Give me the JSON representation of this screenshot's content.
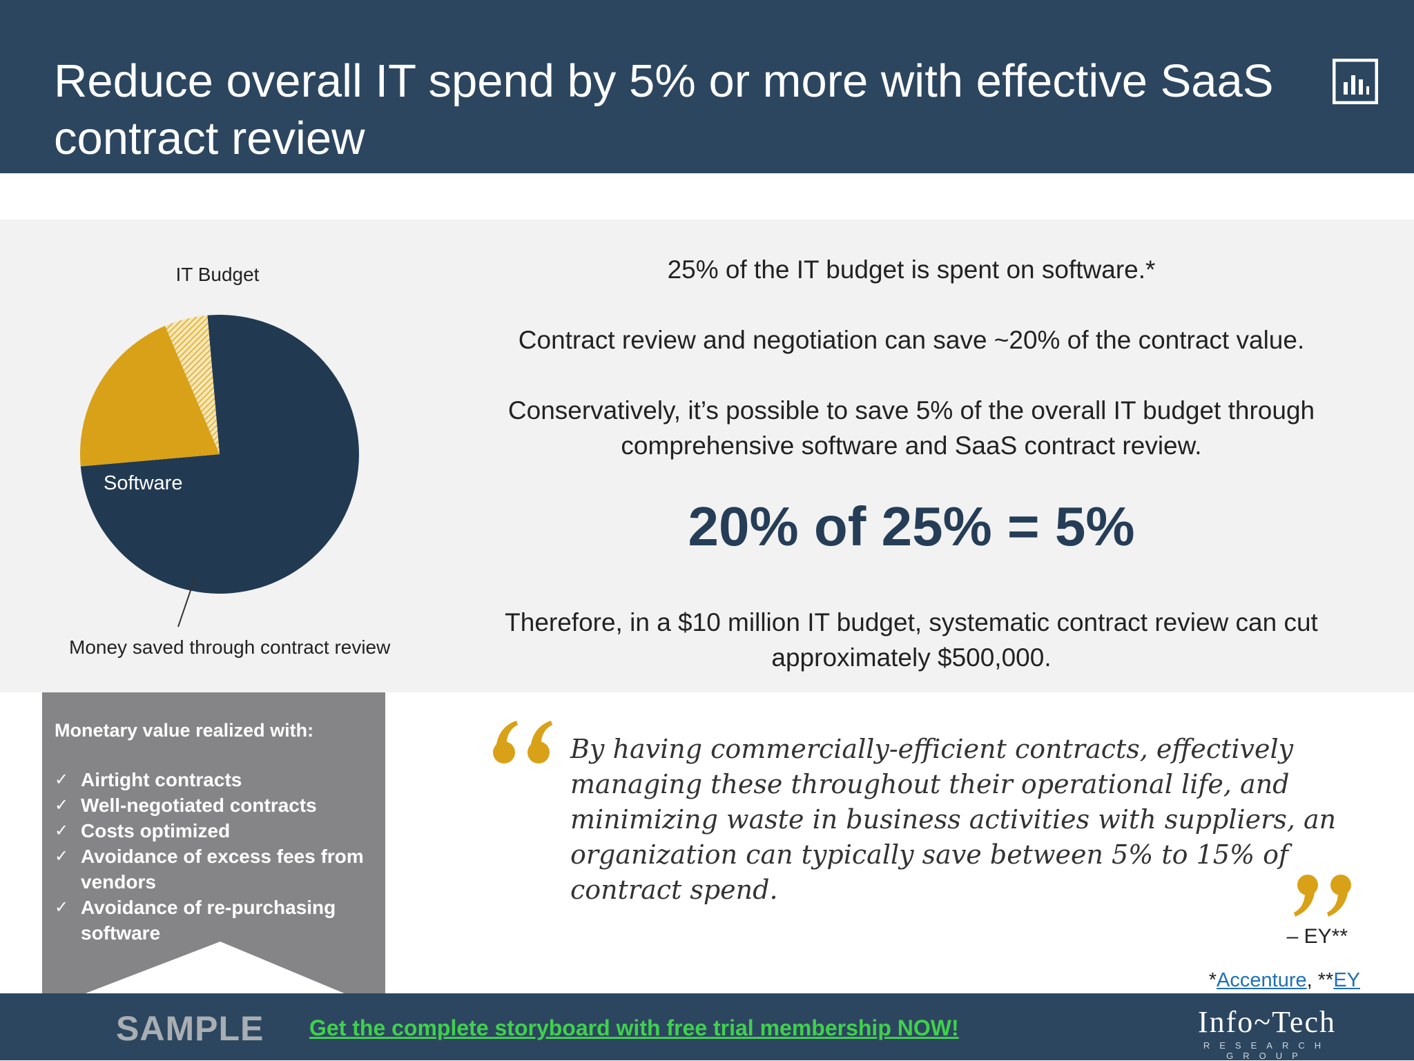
{
  "header": {
    "title": "Reduce overall IT spend by 5% or more with effective SaaS contract review",
    "icon": "bar-chart-icon"
  },
  "chart_data": {
    "type": "pie",
    "title": "IT Budget",
    "slices": [
      {
        "label": "",
        "value": 75,
        "color": "#213a52"
      },
      {
        "label": "Software",
        "value": 20,
        "color": "#d9a117"
      },
      {
        "label": "Money saved through contract review",
        "value": 5,
        "color": "#e8c860",
        "pattern": "hatched"
      }
    ]
  },
  "stats": {
    "line1": "25% of the IT budget is spent on software.*",
    "line2": "Contract review and negotiation can save ~20% of the contract value.",
    "line3": "Conservatively, it’s possible to save 5% of the overall IT budget through comprehensive software and SaaS contract review.",
    "equation": "20% of 25% = 5%",
    "line4": "Therefore, in a $10 million IT budget, systematic contract review can cut approximately $500,000."
  },
  "value_box": {
    "heading": "Monetary value realized with:",
    "items": [
      "Airtight contracts",
      "Well-negotiated contracts",
      "Costs optimized",
      "Avoidance of excess fees from vendors",
      "Avoidance of re-purchasing software"
    ],
    "check": "✓"
  },
  "quote": {
    "text": "By having commercially-efficient contracts, effectively managing these throughout their operational life, and minimizing waste in business activities with suppliers, an organization can typically save between 5% to 15% of contract spend.",
    "attribution": "– EY**"
  },
  "sources": {
    "prefix1": "*",
    "link1": "Accenture",
    "sep": ", **",
    "link2": "EY"
  },
  "footer": {
    "sample": "SAMPLE",
    "cta": "Get the complete storyboard with free trial membership NOW!",
    "logo_name": "Info~Tech",
    "logo_sub": "RESEARCH GROUP"
  },
  "colors": {
    "header_bg": "#2c4660",
    "accent_gold": "#d9a117",
    "pie_main": "#213a52",
    "cta_green": "#3fd14b"
  }
}
